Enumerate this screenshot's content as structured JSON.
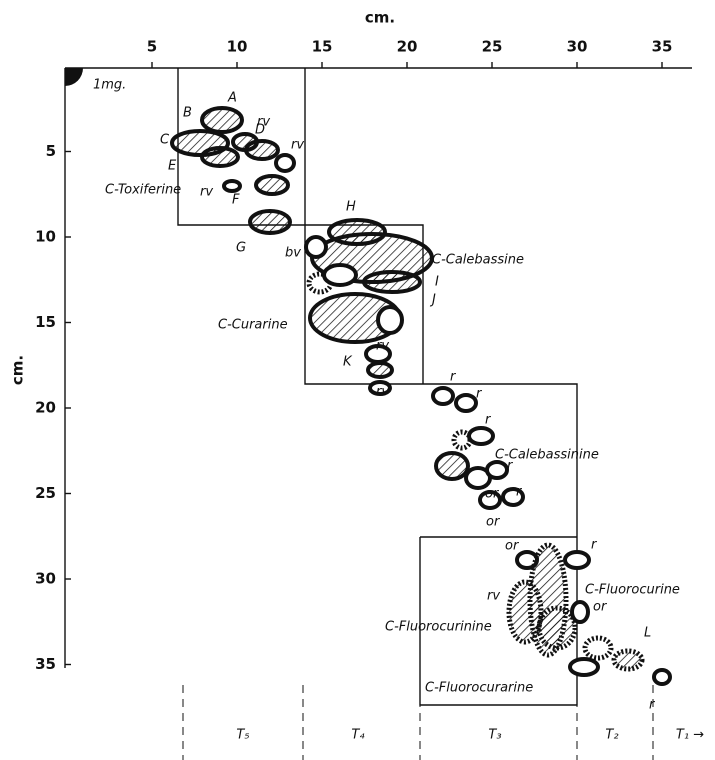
{
  "axes": {
    "x_label": "cm.",
    "y_label": "cm.",
    "x_ticks": [
      5,
      10,
      15,
      20,
      25,
      30,
      35
    ],
    "y_ticks": [
      5,
      10,
      15,
      20,
      25,
      30,
      35
    ]
  },
  "amount_label": "1mg.",
  "spot_labels": [
    "A",
    "B",
    "C",
    "D",
    "rv",
    "rv",
    "E",
    "C-Toxiferine",
    "rv",
    "F",
    "G",
    "bv",
    "H",
    "C-Calebassine",
    "I",
    "J",
    "C-Curarine",
    "rv",
    "K",
    "rv",
    "r",
    "r",
    "r",
    "C-Calebassinine",
    "r",
    "or",
    "r",
    "or",
    "or",
    "r",
    "C-Fluorocurine",
    "or",
    "rv",
    "C-Fluorocurinine",
    "L",
    "C-Fluorocurarine",
    "r"
  ],
  "zones": [
    "T₅",
    "T₄",
    "T₃",
    "T₂",
    "T₁ →"
  ]
}
